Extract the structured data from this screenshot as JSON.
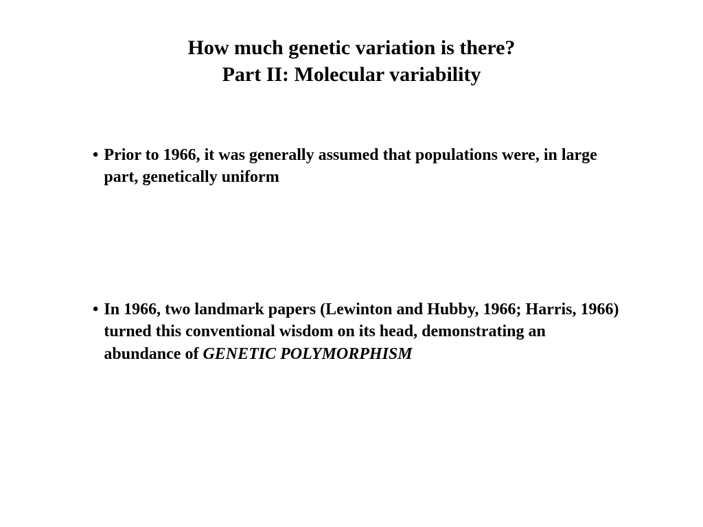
{
  "title": {
    "line1": "How much genetic variation is there?",
    "line2": "Part II: Molecular variability",
    "fontsize": 30,
    "color": "#000000"
  },
  "bullets": [
    {
      "text_part1": "Prior to 1966, it was generally assumed that populations were, in large part, genetically uniform",
      "italic_term": "",
      "fontsize": 24,
      "color": "#000000"
    },
    {
      "text_part1": "In 1966, two landmark papers (Lewinton and Hubby, 1966; Harris, 1966) turned this conventional wisdom on its head, demonstrating an abundance of ",
      "italic_term": "GENETIC POLYMORPHISM",
      "fontsize": 24,
      "color": "#000000"
    }
  ],
  "bullet_marker": "•",
  "background_color": "#ffffff"
}
